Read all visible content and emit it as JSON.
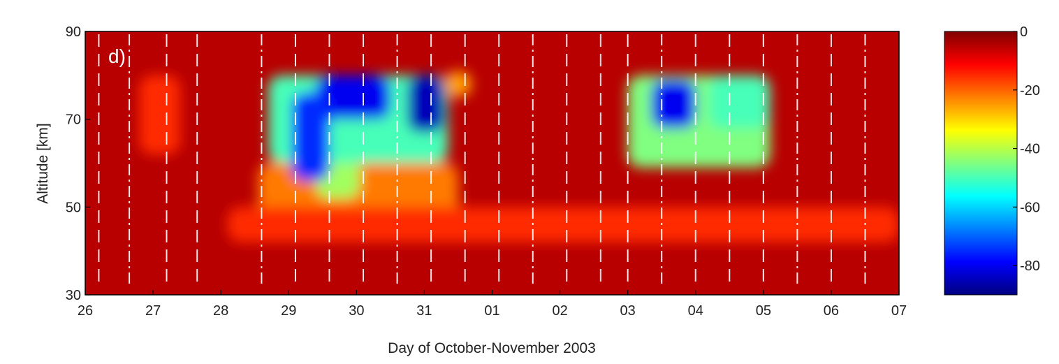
{
  "chart_data": {
    "type": "heatmap",
    "panel_label": "d)",
    "xlabel": "Day of October-November 2003",
    "ylabel": "Altitude [km]",
    "x_tick_labels": [
      "26",
      "27",
      "28",
      "29",
      "30",
      "31",
      "01",
      "02",
      "03",
      "04",
      "05",
      "06",
      "07"
    ],
    "xlim": [
      0,
      12
    ],
    "y_ticks": [
      30,
      50,
      70,
      90
    ],
    "ylim": [
      30,
      90
    ],
    "colorbar": {
      "ticks": [
        0,
        -20,
        -40,
        -60,
        -80
      ],
      "range": [
        -90,
        0
      ],
      "colormap": "jet",
      "reversed": true
    },
    "grid": false,
    "background_value": -5,
    "depletion_regions": [
      {
        "x0": 2.55,
        "x1": 5.5,
        "y0": 45,
        "y1": 60,
        "value": -22
      },
      {
        "x0": 2.1,
        "x1": 12,
        "y0": 42,
        "y1": 50,
        "value": -15
      },
      {
        "x0": 3.4,
        "x1": 4.05,
        "y0": 52,
        "y1": 78,
        "value": -42
      },
      {
        "x0": 2.7,
        "x1": 5.35,
        "y0": 60,
        "y1": 80,
        "value": -50
      },
      {
        "x0": 3.4,
        "x1": 4.5,
        "y0": 70,
        "y1": 80,
        "value": -80
      },
      {
        "x0": 3.05,
        "x1": 3.6,
        "y0": 56,
        "y1": 76,
        "value": -75
      },
      {
        "x0": 4.75,
        "x1": 5.3,
        "y0": 67,
        "y1": 80,
        "value": -85
      },
      {
        "x0": 5.3,
        "x1": 5.7,
        "y0": 75,
        "y1": 81,
        "value": -25
      },
      {
        "x0": 8.0,
        "x1": 10.1,
        "y0": 59,
        "y1": 80,
        "value": -45
      },
      {
        "x0": 8.35,
        "x1": 9.0,
        "y0": 68,
        "y1": 79,
        "value": -80
      },
      {
        "x0": 9.2,
        "x1": 10.1,
        "y0": 68,
        "y1": 80,
        "value": -50
      },
      {
        "x0": 0.8,
        "x1": 1.4,
        "y0": 62,
        "y1": 80,
        "value": -15
      }
    ],
    "dashed_lines_x": [
      0.2,
      0.65,
      1.2,
      1.65,
      2.6,
      3.1,
      3.6,
      4.1,
      4.6,
      5.1,
      5.6,
      6.1,
      6.6,
      7.1,
      7.6,
      8.0,
      8.5,
      9.0,
      9.5,
      10.0,
      10.5,
      11.0,
      11.5
    ],
    "dash_dot_lines_x": [
      0.65,
      2.6,
      4.6,
      6.6,
      8.5,
      10.5,
      11.5
    ],
    "colors": {
      "frame": "#000000",
      "tick_text": "#222222",
      "dashed_line": "#ffffff"
    }
  }
}
